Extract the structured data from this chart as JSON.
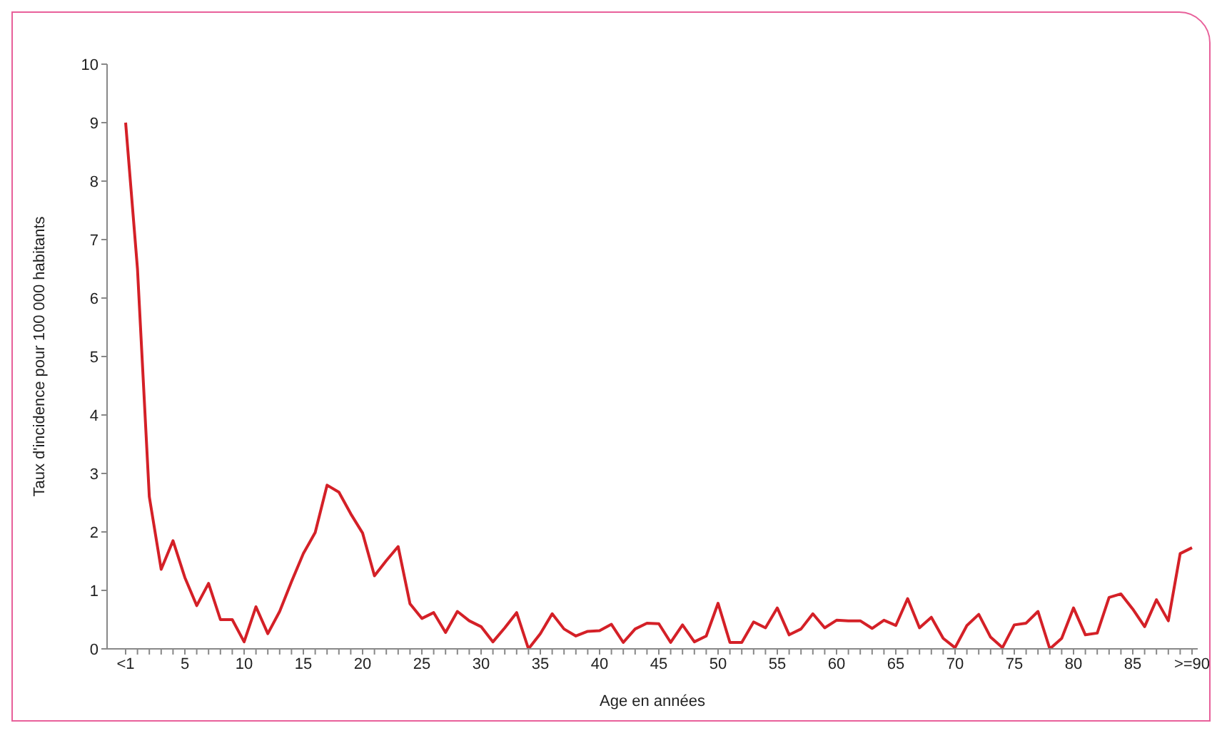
{
  "chart_data": {
    "type": "line",
    "xlabel": "Age en années",
    "ylabel": "Taux d'incidence pour 100 000 habitants",
    "categories": [
      "<1",
      null,
      null,
      null,
      null,
      "5",
      null,
      null,
      null,
      null,
      "10",
      null,
      null,
      null,
      null,
      "15",
      null,
      null,
      null,
      null,
      "20",
      null,
      null,
      null,
      null,
      "25",
      null,
      null,
      null,
      null,
      "30",
      null,
      null,
      null,
      null,
      "35",
      null,
      null,
      null,
      null,
      "40",
      null,
      null,
      null,
      null,
      "45",
      null,
      null,
      null,
      null,
      "50",
      null,
      null,
      null,
      null,
      "55",
      null,
      null,
      null,
      null,
      "60",
      null,
      null,
      null,
      null,
      "65",
      null,
      null,
      null,
      null,
      "70",
      null,
      null,
      null,
      null,
      "75",
      null,
      null,
      null,
      null,
      "80",
      null,
      null,
      null,
      null,
      "85",
      null,
      null,
      null,
      null,
      ">=90"
    ],
    "series": [
      {
        "color": "#d42027",
        "values": [
          9.0,
          6.5,
          2.6,
          1.36,
          1.85,
          1.22,
          0.74,
          1.12,
          0.5,
          0.5,
          0.12,
          0.72,
          0.26,
          0.64,
          1.15,
          1.63,
          1.99,
          2.8,
          2.68,
          2.31,
          1.98,
          1.25,
          1.51,
          1.75,
          0.77,
          0.52,
          0.62,
          0.28,
          0.64,
          0.48,
          0.38,
          0.12,
          0.36,
          0.62,
          0.0,
          0.26,
          0.6,
          0.34,
          0.22,
          0.3,
          0.31,
          0.42,
          0.11,
          0.34,
          0.44,
          0.43,
          0.11,
          0.41,
          0.12,
          0.22,
          0.78,
          0.11,
          0.11,
          0.46,
          0.36,
          0.7,
          0.24,
          0.34,
          0.6,
          0.36,
          0.49,
          0.48,
          0.48,
          0.35,
          0.49,
          0.4,
          0.86,
          0.36,
          0.54,
          0.18,
          0.02,
          0.4,
          0.59,
          0.2,
          0.02,
          0.41,
          0.44,
          0.64,
          0.0,
          0.18,
          0.7,
          0.24,
          0.27,
          0.88,
          0.94,
          0.68,
          0.38,
          0.84,
          0.48,
          1.63,
          1.73
        ]
      }
    ],
    "ylim": [
      0,
      10
    ],
    "yticks": [
      0,
      1,
      2,
      3,
      4,
      5,
      6,
      7,
      8,
      9,
      10
    ],
    "marker": "none",
    "line_style": "solid"
  }
}
